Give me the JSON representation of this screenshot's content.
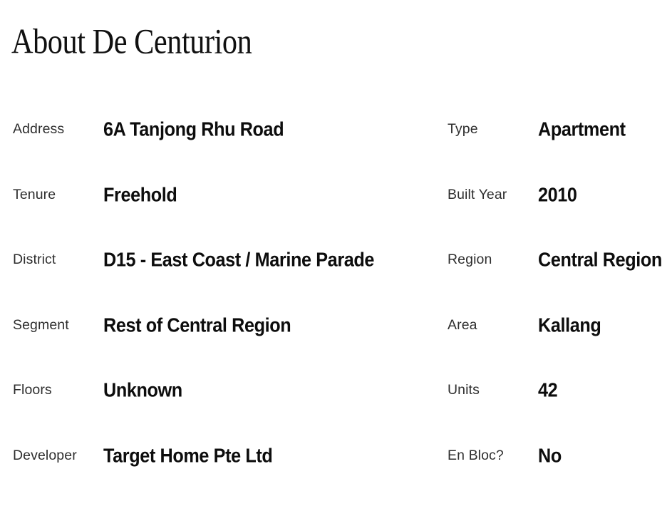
{
  "page": {
    "title": "About De Centurion"
  },
  "details": {
    "left": [
      {
        "label": "Address",
        "value": "6A Tanjong Rhu Road"
      },
      {
        "label": "Tenure",
        "value": "Freehold"
      },
      {
        "label": "District",
        "value": "D15 - East Coast / Marine Parade"
      },
      {
        "label": "Segment",
        "value": "Rest of Central Region"
      },
      {
        "label": "Floors",
        "value": "Unknown"
      },
      {
        "label": "Developer",
        "value": "Target Home Pte Ltd"
      }
    ],
    "right": [
      {
        "label": "Type",
        "value": "Apartment"
      },
      {
        "label": "Built Year",
        "value": "2010"
      },
      {
        "label": "Region",
        "value": "Central Region"
      },
      {
        "label": "Area",
        "value": "Kallang"
      },
      {
        "label": "Units",
        "value": "42"
      },
      {
        "label": "En Bloc?",
        "value": "No"
      }
    ]
  },
  "colors": {
    "background": "#ffffff",
    "heading": "#101010",
    "label": "#2e2e2e",
    "value": "#0d0d0d"
  }
}
